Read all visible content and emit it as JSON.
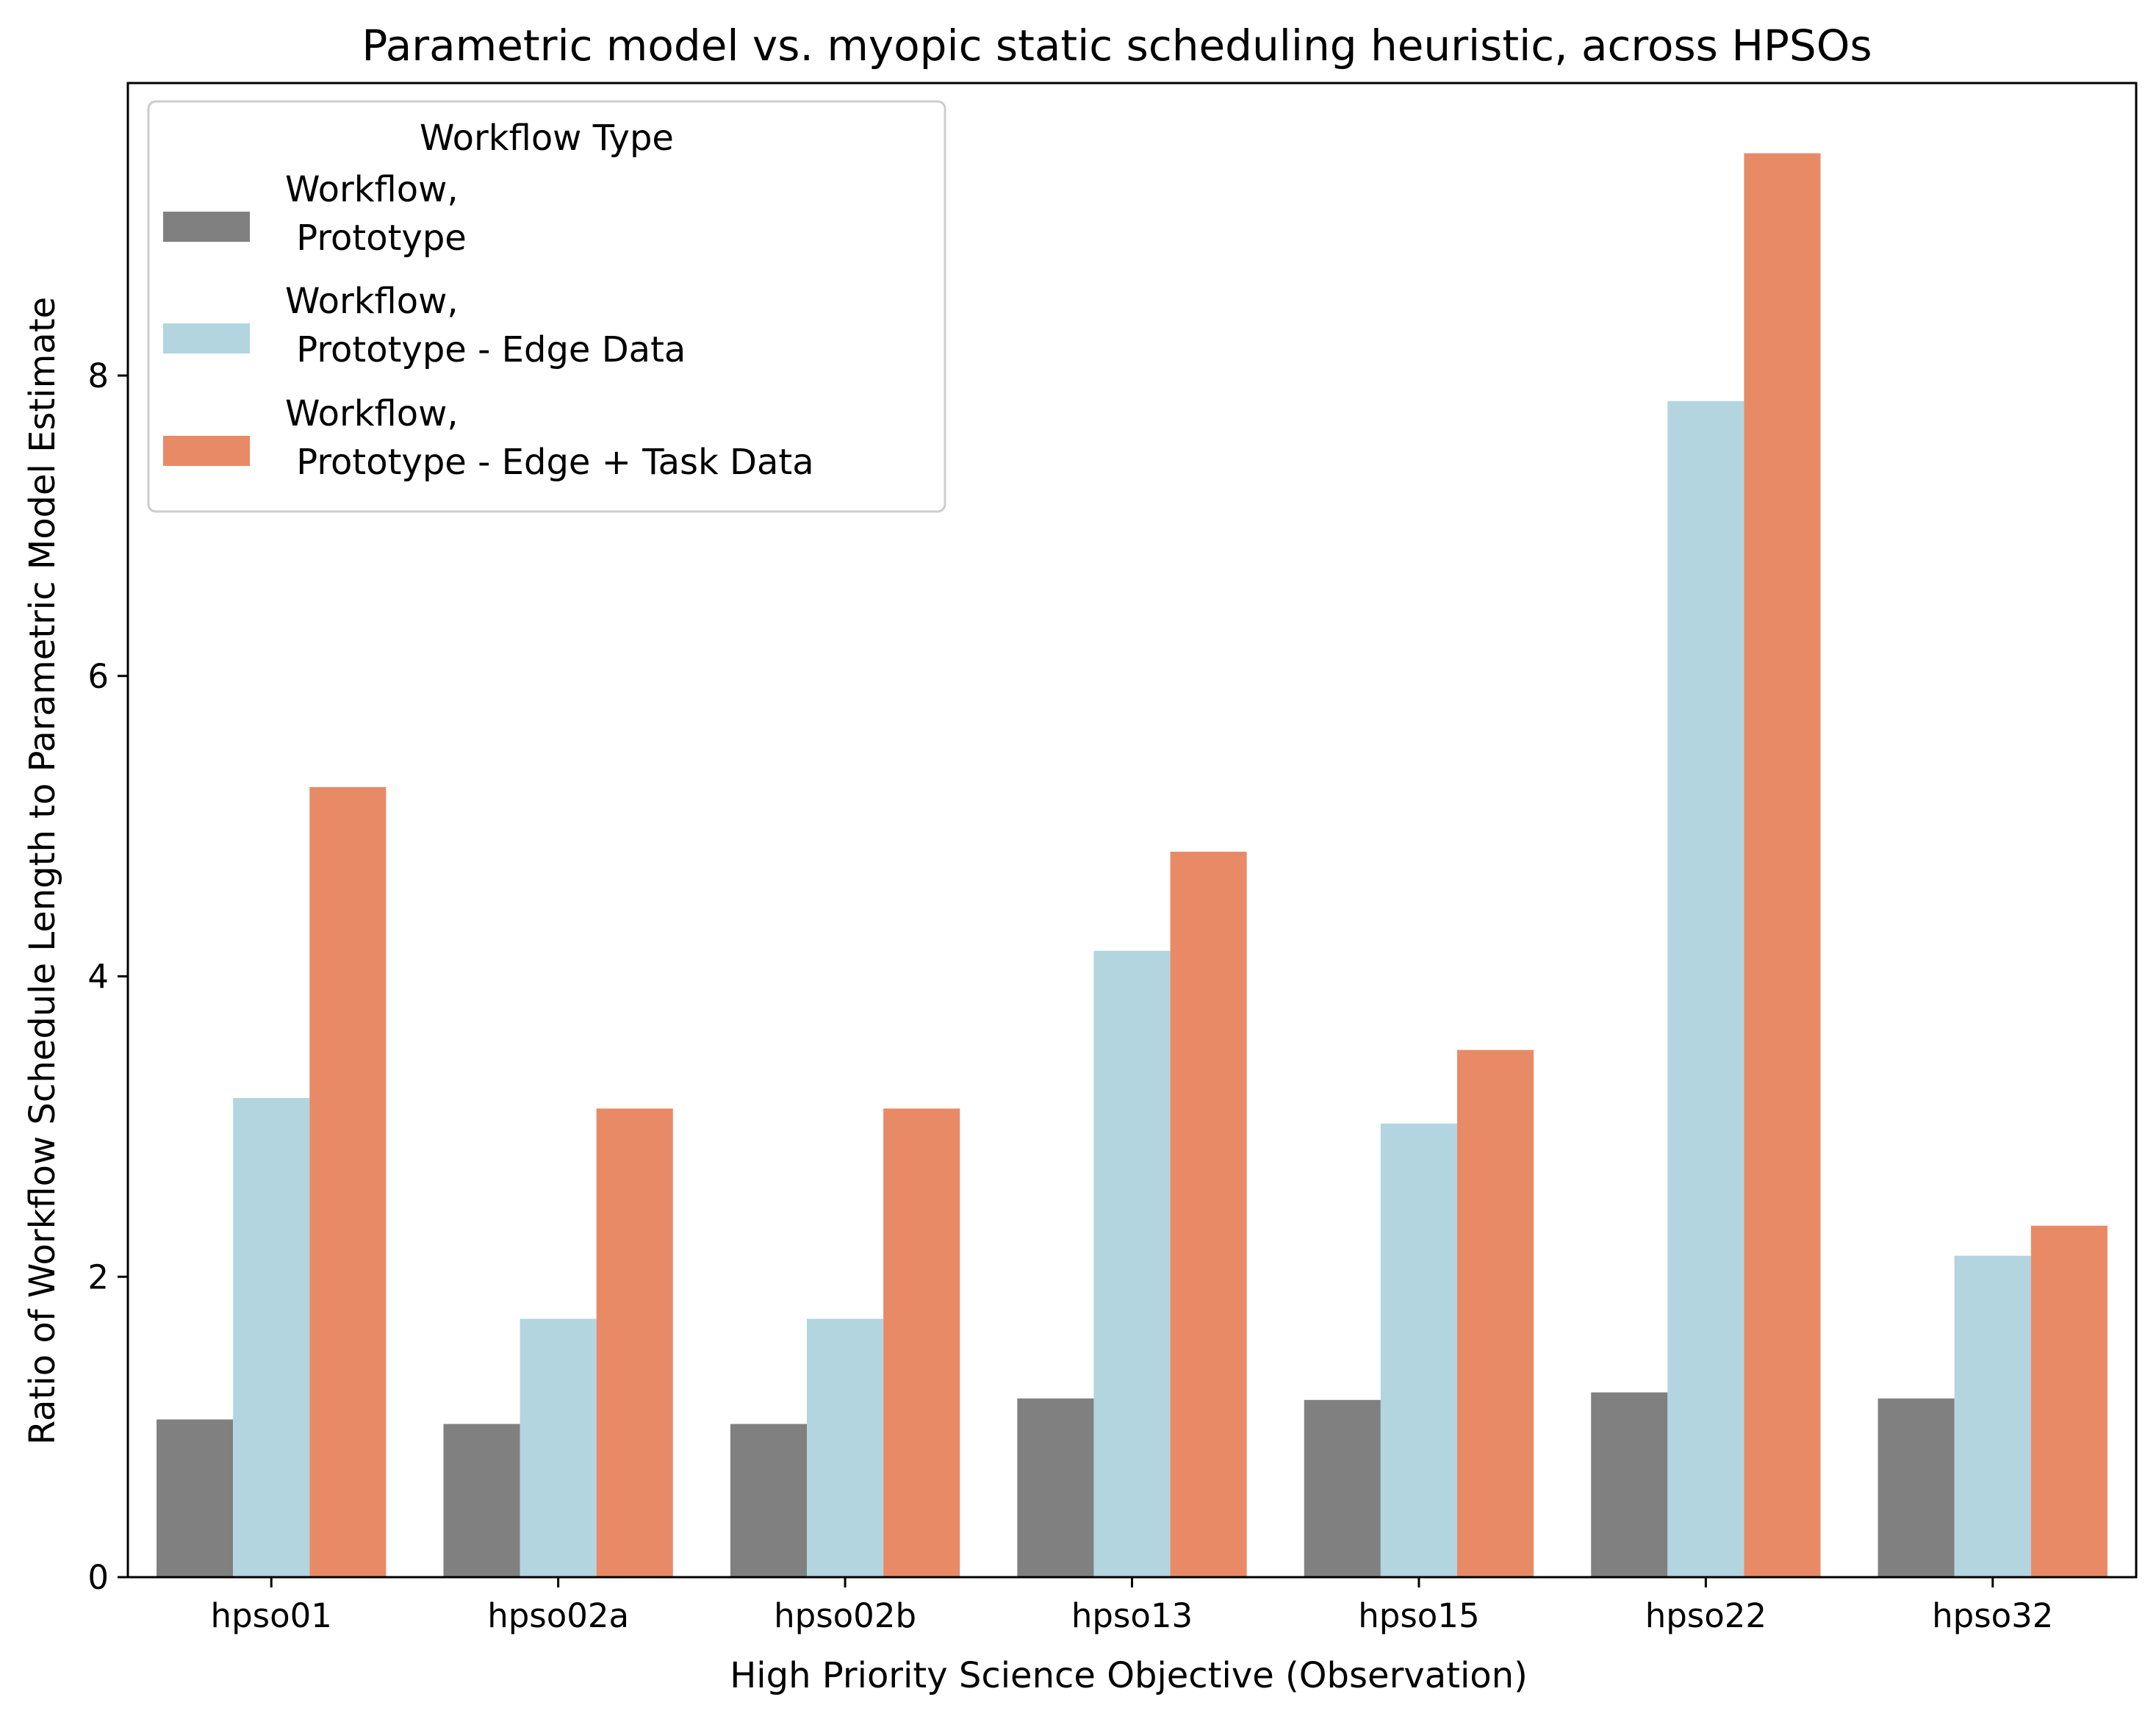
{
  "chart_data": {
    "type": "bar",
    "title": "Parametric model vs. myopic static scheduling heuristic, across HPSOs",
    "xlabel": "High Priority Science Objective (Observation)",
    "ylabel": "Ratio of Workflow Schedule Length to Parametric Model Estimate",
    "categories": [
      "hpso01",
      "hpso02a",
      "hpso02b",
      "hpso13",
      "hpso15",
      "hpso22",
      "hpso32"
    ],
    "ylim": [
      0,
      10
    ],
    "yticks": [
      0,
      2,
      4,
      6,
      8
    ],
    "grid": false,
    "legend": {
      "title": "Workflow Type",
      "placement": "top-left"
    },
    "series": [
      {
        "name": "Workflow,\n Prototype",
        "color": "#808080",
        "values": [
          1.05,
          1.02,
          1.02,
          1.19,
          1.18,
          1.23,
          1.19
        ]
      },
      {
        "name": "Workflow,\n Prototype - Edge Data",
        "color": "#b3d5e0",
        "values": [
          3.19,
          1.72,
          1.72,
          4.17,
          3.02,
          7.83,
          2.14
        ]
      },
      {
        "name": "Workflow,\n Prototype - Edge + Task Data",
        "color": "#e98a67",
        "values": [
          5.26,
          3.12,
          3.12,
          4.83,
          3.51,
          9.48,
          2.34
        ]
      }
    ]
  }
}
